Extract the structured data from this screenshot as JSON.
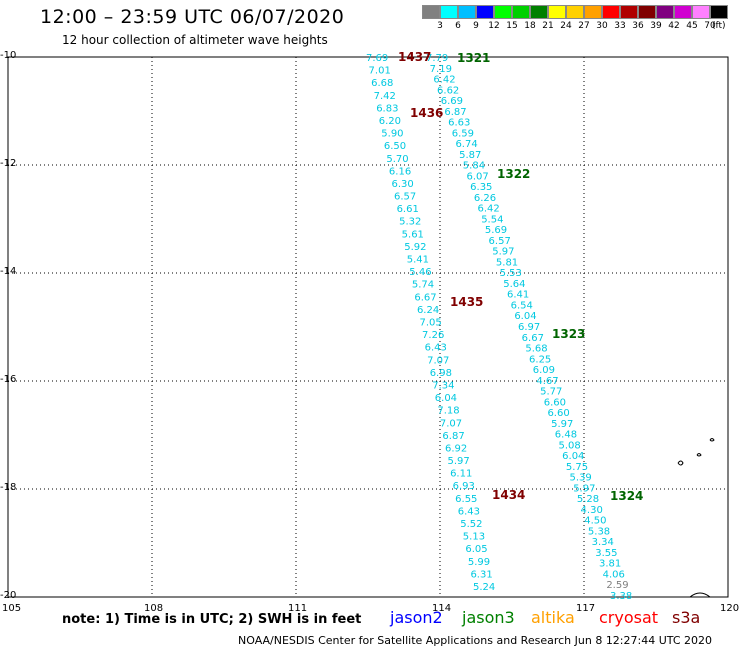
{
  "title": "12:00 – 23:59 UTC 06/07/2020",
  "subtitle": "12 hour collection of altimeter wave heights",
  "colorbar": {
    "colors": [
      "#808080",
      "#00ffff",
      "#00bfff",
      "#0000ff",
      "#00ff00",
      "#00d000",
      "#008000",
      "#ffff00",
      "#ffd000",
      "#ffa000",
      "#ff0000",
      "#b00000",
      "#800000",
      "#800080",
      "#d000d0",
      "#ff80ff",
      "#000000"
    ],
    "labels": [
      "3",
      "6",
      "9",
      "12",
      "15",
      "18",
      "21",
      "24",
      "27",
      "30",
      "33",
      "36",
      "39",
      "42",
      "45",
      "70"
    ],
    "unit": "(ft)"
  },
  "map": {
    "lat_labels": [
      "-10",
      "-12",
      "-14",
      "-16",
      "-18",
      "-20"
    ],
    "lon_labels": [
      "105",
      "108",
      "111",
      "114",
      "117",
      "120"
    ]
  },
  "tracks": {
    "west": {
      "values": [
        "7.69",
        "7.01",
        "6.68",
        "7.42",
        "6.83",
        "6.20",
        "5.90",
        "6.50",
        "5.70",
        "6.16",
        "6.30",
        "6.57",
        "6.61",
        "5.32",
        "5.61",
        "5.92",
        "5.41",
        "5.46",
        "5.74",
        "6.67",
        "6.24",
        "7.05",
        "7.26",
        "6.43",
        "7.07",
        "6.98",
        "7.34",
        "6.04",
        "7.18",
        "7.07",
        "6.87",
        "6.92",
        "5.97",
        "6.11",
        "6.93",
        "6.55",
        "6.43",
        "5.52",
        "5.13",
        "6.05",
        "5.99",
        "6.31",
        "5.24"
      ]
    },
    "east": {
      "values": [
        "7.79",
        "7.19",
        "6.42",
        "6.62",
        "6.69",
        "6.87",
        "6.63",
        "6.59",
        "6.74",
        "5.87",
        "5.84",
        "6.07",
        "6.35",
        "6.26",
        "6.42",
        "5.54",
        "5.69",
        "6.57",
        "5.97",
        "5.81",
        "5.53",
        "5.64",
        "6.41",
        "6.54",
        "6.04",
        "6.97",
        "6.67",
        "5.68",
        "6.25",
        "6.09",
        "4.67",
        "5.77",
        "6.60",
        "6.60",
        "5.97",
        "6.48",
        "5.08",
        "6.04",
        "5.75",
        "5.39",
        "5.97",
        "5.28",
        "4.30",
        "4.50",
        "5.38",
        "3.34",
        "3.55",
        "3.81",
        "4.06",
        "2.59",
        "3.38"
      ]
    },
    "time_labels": [
      {
        "text": "1437",
        "color": "#800000"
      },
      {
        "text": "1436",
        "color": "#800000"
      },
      {
        "text": "1435",
        "color": "#800000"
      },
      {
        "text": "1434",
        "color": "#800000"
      },
      {
        "text": "1321",
        "color": "#006400"
      },
      {
        "text": "1322",
        "color": "#006400"
      },
      {
        "text": "1323",
        "color": "#006400"
      },
      {
        "text": "1324",
        "color": "#006400"
      }
    ]
  },
  "notes": "note:  1) Time is in UTC;  2) SWH is in feet",
  "satellites": [
    {
      "name": "jason2",
      "color": "#0000ff"
    },
    {
      "name": "jason3",
      "color": "#008000"
    },
    {
      "name": "altika",
      "color": "#ffa000"
    },
    {
      "name": "cryosat",
      "color": "#ff0000"
    },
    {
      "name": "s3a",
      "color": "#800000"
    }
  ],
  "footer": "NOAA/NESDIS Center for Satellite Applications and Research    Jun  8 12:27:44 UTC 2020"
}
